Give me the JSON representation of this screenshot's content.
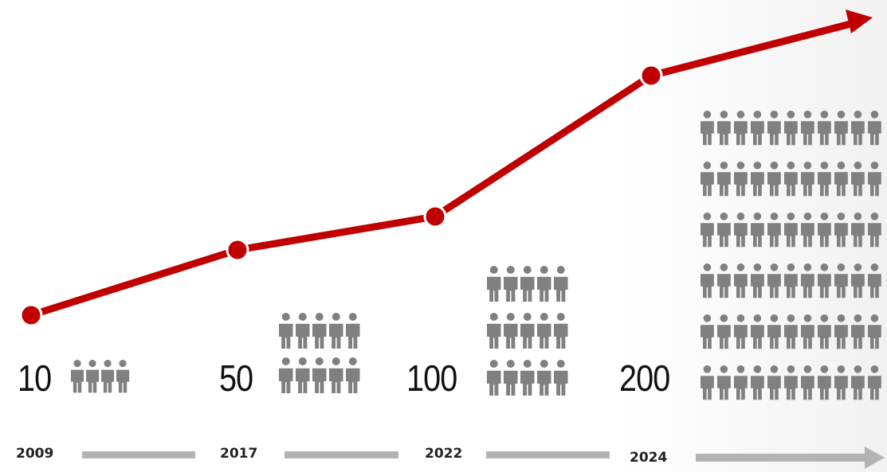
{
  "colors": {
    "growth_line": "#c00000",
    "people_icons": "#808080",
    "timeline_bar": "#b3b3b3"
  },
  "icon": "person-icon",
  "chart_data": {
    "type": "line",
    "title": "",
    "xlabel": "",
    "ylabel": "",
    "categories": [
      "2009",
      "2017",
      "2022",
      "2024"
    ],
    "values": [
      10,
      50,
      100,
      200
    ],
    "count_labels": [
      "10",
      "50",
      "100",
      "200"
    ],
    "trend": "increasing",
    "icons_per_group": [
      4,
      10,
      15,
      60
    ]
  }
}
